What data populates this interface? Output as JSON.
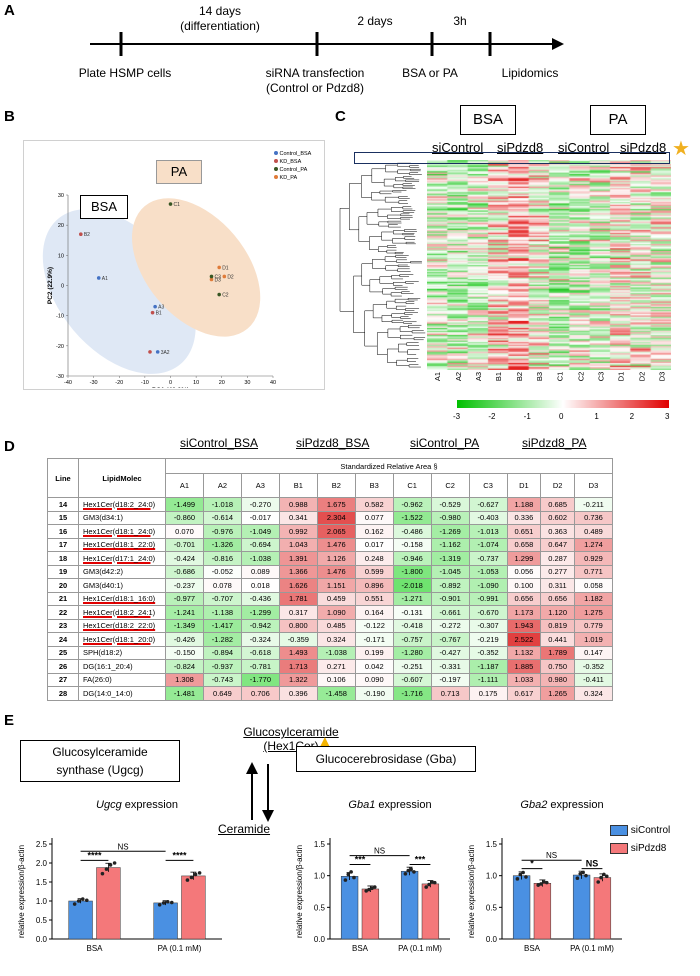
{
  "panelA": {
    "label": "A",
    "top": [
      "14 days\n(differentiation)",
      "2 days",
      "3h"
    ],
    "bottom": [
      "Plate HSMP cells",
      "siRNA transfection\n(Control or Pdzd8)",
      "BSA or PA",
      "Lipidomics"
    ]
  },
  "panelB": {
    "label": "B",
    "bsa": "BSA",
    "pa": "PA",
    "legend": [
      "Control_BSA",
      "KD_BSA",
      "Control_PA",
      "KD_PA"
    ],
    "legend_colors": [
      "#4472c4",
      "#c0504d",
      "#375623",
      "#e07b39"
    ],
    "xlabel": "PC1 (40.0%)",
    "ylabel": "PC2 (22.9%)",
    "xticks": [
      "-40",
      "-30",
      "-20",
      "-10",
      "0",
      "10",
      "20",
      "30",
      "40"
    ],
    "yticks": [
      "-30",
      "-20",
      "-10",
      "0",
      "10",
      "20",
      "30"
    ],
    "points": [
      {
        "n": "B2",
        "x": -35,
        "y": 17,
        "g": 1
      },
      {
        "n": "A1",
        "x": -28,
        "y": 2.5,
        "g": 0
      },
      {
        "n": "A3",
        "x": -6,
        "y": -7,
        "g": 0
      },
      {
        "n": "B1",
        "x": -7,
        "y": -9,
        "g": 1
      },
      {
        "n": "3A2",
        "x": -5,
        "y": -22,
        "g": 0
      },
      {
        "n": "",
        "x": -8,
        "y": -22,
        "g": 1
      },
      {
        "n": "C1",
        "x": 0,
        "y": 27,
        "g": 2
      },
      {
        "n": "D1",
        "x": 19,
        "y": 6,
        "g": 3
      },
      {
        "n": "D2",
        "x": 21,
        "y": 3,
        "g": 3
      },
      {
        "n": "D3",
        "x": 16,
        "y": 2,
        "g": 3
      },
      {
        "n": "C3",
        "x": 16,
        "y": 3,
        "g": 2
      },
      {
        "n": "C2",
        "x": 19,
        "y": -3,
        "g": 2
      }
    ]
  },
  "panelC": {
    "label": "C",
    "bsa": "BSA",
    "pa": "PA",
    "groups": [
      "siControl",
      "siPdzd8",
      "siControl",
      "siPdzd8"
    ],
    "cols": [
      "A1",
      "A2",
      "A3",
      "B1",
      "B2",
      "B3",
      "C1",
      "C2",
      "C3",
      "D1",
      "D2",
      "D3"
    ],
    "scale": [
      "-3",
      "-2",
      "-1",
      "0",
      "1",
      "2",
      "3"
    ]
  },
  "panelD": {
    "label": "D",
    "groups": [
      "siControl_BSA",
      "siPdzd8_BSA",
      "siControl_PA",
      "siPdzd8_PA"
    ],
    "h_line": "Line",
    "h_lipid": "LipidMolec",
    "h_sra": "Standardized Relative Area §",
    "cols": [
      "A1",
      "A2",
      "A3",
      "B1",
      "B2",
      "B3",
      "C1",
      "C2",
      "C3",
      "D1",
      "D2",
      "D3"
    ],
    "rows": [
      {
        "line": "14",
        "name": "Hex1Cer(d18:2_24:0)",
        "v": [
          "-1.499",
          "-1.018",
          "-0.270",
          "0.988",
          "1.675",
          "0.582",
          "-0.962",
          "-0.529",
          "-0.627",
          "1.188",
          "0.685",
          "-0.211"
        ]
      },
      {
        "line": "15",
        "name": "GM3(d34:1)",
        "v": [
          "-0.860",
          "-0.614",
          "-0.017",
          "0.341",
          "2.304",
          "0.077",
          "-1.522",
          "-0.980",
          "-0.403",
          "0.336",
          "0.602",
          "0.736"
        ]
      },
      {
        "line": "16",
        "name": "Hex1Cer(d18:1_24:0)",
        "v": [
          "0.070",
          "-0.976",
          "-1.049",
          "0.992",
          "2.065",
          "0.162",
          "-0.486",
          "-1.269",
          "-1.013",
          "0.651",
          "0.363",
          "0.489"
        ]
      },
      {
        "line": "17",
        "name": "Hex1Cer(d18:1_22:0)",
        "v": [
          "-0.701",
          "-1.326",
          "-0.694",
          "1.043",
          "1.476",
          "0.017",
          "-0.158",
          "-1.162",
          "-1.074",
          "0.658",
          "0.647",
          "1.274"
        ]
      },
      {
        "line": "18",
        "name": "Hex1Cer(d17:1_24:0)",
        "v": [
          "-0.424",
          "-0.816",
          "-1.038",
          "1.391",
          "1.126",
          "0.248",
          "-0.946",
          "-1.319",
          "-0.737",
          "1.299",
          "0.287",
          "0.929"
        ]
      },
      {
        "line": "19",
        "name": "GM3(d42:2)",
        "v": [
          "-0.686",
          "-0.052",
          "0.089",
          "1.366",
          "1.476",
          "0.599",
          "-1.800",
          "-1.045",
          "-1.053",
          "0.056",
          "0.277",
          "0.771"
        ]
      },
      {
        "line": "20",
        "name": "GM3(d40:1)",
        "v": [
          "-0.237",
          "0.078",
          "0.018",
          "1.626",
          "1.151",
          "0.896",
          "-2.018",
          "-0.892",
          "-1.090",
          "0.100",
          "0.311",
          "0.058"
        ]
      },
      {
        "line": "21",
        "name": "Hex1Cer(d18:1_16:0)",
        "v": [
          "-0.977",
          "-0.707",
          "-0.436",
          "1.781",
          "0.459",
          "0.551",
          "-1.271",
          "-0.901",
          "-0.991",
          "0.656",
          "0.656",
          "1.182"
        ]
      },
      {
        "line": "22",
        "name": "Hex1Cer(d18:2_24:1)",
        "v": [
          "-1.241",
          "-1.138",
          "-1.299",
          "0.317",
          "1.090",
          "0.164",
          "-0.131",
          "-0.661",
          "-0.670",
          "1.173",
          "1.120",
          "1.275"
        ]
      },
      {
        "line": "23",
        "name": "Hex1Cer(d18:2_22:0)",
        "v": [
          "-1.349",
          "-1.417",
          "-0.942",
          "0.800",
          "0.485",
          "-0.122",
          "-0.418",
          "-0.272",
          "-0.307",
          "1.943",
          "0.819",
          "0.779"
        ]
      },
      {
        "line": "24",
        "name": "Hex1Cer(d18:1_20:0)",
        "v": [
          "-0.426",
          "-1.282",
          "-0.324",
          "-0.359",
          "0.324",
          "-0.171",
          "-0.757",
          "-0.767",
          "-0.219",
          "2.522",
          "0.441",
          "1.019"
        ]
      },
      {
        "line": "25",
        "name": "SPH(d18:2)",
        "v": [
          "-0.150",
          "-0.894",
          "-0.618",
          "1.493",
          "-1.038",
          "0.199",
          "-1.280",
          "-0.427",
          "-0.352",
          "1.132",
          "1.789",
          "0.147"
        ]
      },
      {
        "line": "26",
        "name": "DG(16:1_20:4)",
        "v": [
          "-0.824",
          "-0.937",
          "-0.781",
          "1.713",
          "0.271",
          "0.042",
          "-0.251",
          "-0.331",
          "-1.187",
          "1.885",
          "0.750",
          "-0.352"
        ]
      },
      {
        "line": "27",
        "name": "FA(26:0)",
        "v": [
          "1.308",
          "-0.743",
          "-1.770",
          "1.322",
          "0.106",
          "0.090",
          "-0.607",
          "-0.197",
          "-1.111",
          "1.033",
          "0.980",
          "-0.411"
        ]
      },
      {
        "line": "28",
        "name": "DG(14:0_14:0)",
        "v": [
          "-1.481",
          "0.649",
          "0.706",
          "0.396",
          "-1.458",
          "-0.190",
          "-1.716",
          "0.713",
          "0.175",
          "0.617",
          "1.265",
          "0.324"
        ]
      }
    ]
  },
  "panelE": {
    "label": "E",
    "hexcer": "Glucosylceramide\n(Hex1Cer)",
    "ugcg_box": "Glucosylceramide\nsynthase (Ugcg)",
    "gba_box": "Glucocerebrosidase (Gba)",
    "ceramide": "Ceramide",
    "legend": [
      "siControl",
      "siPdzd8"
    ],
    "colors": {
      "siControl": "#4a90e2",
      "siPdzd8": "#f4787a"
    },
    "ylabel": "relative expression/β-actin"
  },
  "chart_data": [
    {
      "type": "bar",
      "title_gene": "Ugcg",
      "title_suffix": " expression",
      "categories": [
        "BSA",
        "PA (0.1 mM)"
      ],
      "series": [
        {
          "name": "siControl",
          "values": [
            1.0,
            0.95
          ]
        },
        {
          "name": "siPdzd8",
          "values": [
            1.88,
            1.66
          ]
        }
      ],
      "ylim": [
        0,
        2.5
      ],
      "yticks": [
        "0.0",
        "0.5",
        "1.0",
        "1.5",
        "2.0",
        "2.5"
      ],
      "sig": [
        "****",
        "****",
        "NS"
      ],
      "points": [
        [
          0.92,
          1.0,
          1.05,
          1.02
        ],
        [
          1.72,
          1.84,
          1.95,
          2.0
        ],
        [
          0.9,
          0.95,
          0.98,
          0.96
        ],
        [
          1.55,
          1.62,
          1.7,
          1.74
        ]
      ]
    },
    {
      "type": "bar",
      "title_gene": "Gba1",
      "title_suffix": " expression",
      "categories": [
        "BSA",
        "PA (0.1 mM)"
      ],
      "series": [
        {
          "name": "siControl",
          "values": [
            0.99,
            1.07
          ]
        },
        {
          "name": "siPdzd8",
          "values": [
            0.79,
            0.87
          ]
        }
      ],
      "ylim": [
        0,
        1.5
      ],
      "yticks": [
        "0.0",
        "0.5",
        "1.0",
        "1.5"
      ],
      "sig": [
        "***",
        "***",
        "NS"
      ],
      "points": [
        [
          0.93,
          1.02,
          1.06,
          0.97
        ],
        [
          0.76,
          0.78,
          0.8,
          0.82
        ],
        [
          1.03,
          1.08,
          1.1,
          1.06
        ],
        [
          0.82,
          0.86,
          0.9,
          0.89
        ]
      ]
    },
    {
      "type": "bar",
      "title_gene": "Gba2",
      "title_suffix": " expression",
      "categories": [
        "BSA",
        "PA (0.1 mM)"
      ],
      "series": [
        {
          "name": "siControl",
          "values": [
            1.0,
            1.01
          ]
        },
        {
          "name": "siPdzd8",
          "values": [
            0.88,
            0.97
          ]
        }
      ],
      "ylim": [
        0,
        1.5
      ],
      "yticks": [
        "0.0",
        "0.5",
        "1.0",
        "1.5"
      ],
      "sig": [
        "*",
        "NS",
        "NS"
      ],
      "points": [
        [
          0.95,
          1.02,
          1.05,
          0.98
        ],
        [
          0.85,
          0.87,
          0.9,
          0.89
        ],
        [
          0.96,
          1.03,
          1.05,
          1.0
        ],
        [
          0.9,
          0.97,
          1.02,
          0.99
        ]
      ]
    }
  ]
}
